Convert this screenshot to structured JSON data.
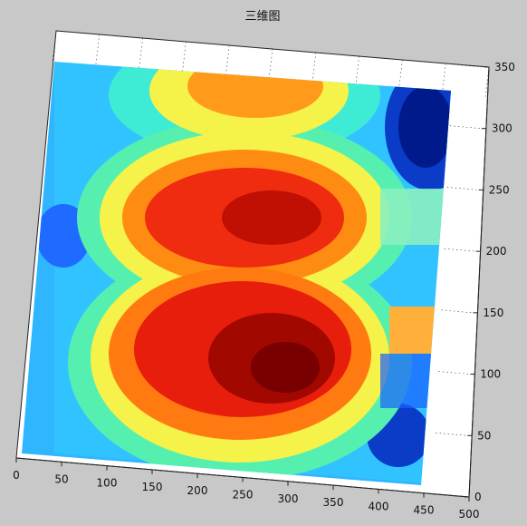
{
  "window": {
    "title": "三维图"
  },
  "colors": {
    "background": "#c8c8c8",
    "plot_box": "#ffffff",
    "colormap": "jet"
  },
  "chart_data": {
    "type": "heatmap",
    "title": "三维图",
    "view": "3d-surface",
    "grid": true,
    "colormap": "jet",
    "x_ticks": [
      "0",
      "50",
      "100",
      "150",
      "200",
      "250",
      "300",
      "350",
      "400",
      "450",
      "500"
    ],
    "y_ticks": [
      "0",
      "50",
      "100",
      "150",
      "200",
      "250",
      "300",
      "350"
    ],
    "xlim": [
      0,
      500
    ],
    "ylim": [
      0,
      350
    ],
    "hotspots": [
      {
        "x": 300,
        "y": 110,
        "level": 1.0
      },
      {
        "x": 260,
        "y": 210,
        "level": 0.85
      },
      {
        "x": 290,
        "y": 340,
        "level": 0.7
      }
    ],
    "cold_regions": [
      {
        "x": 470,
        "y": 330
      },
      {
        "x": 20,
        "y": 220
      },
      {
        "x": 430,
        "y": 10
      }
    ]
  }
}
